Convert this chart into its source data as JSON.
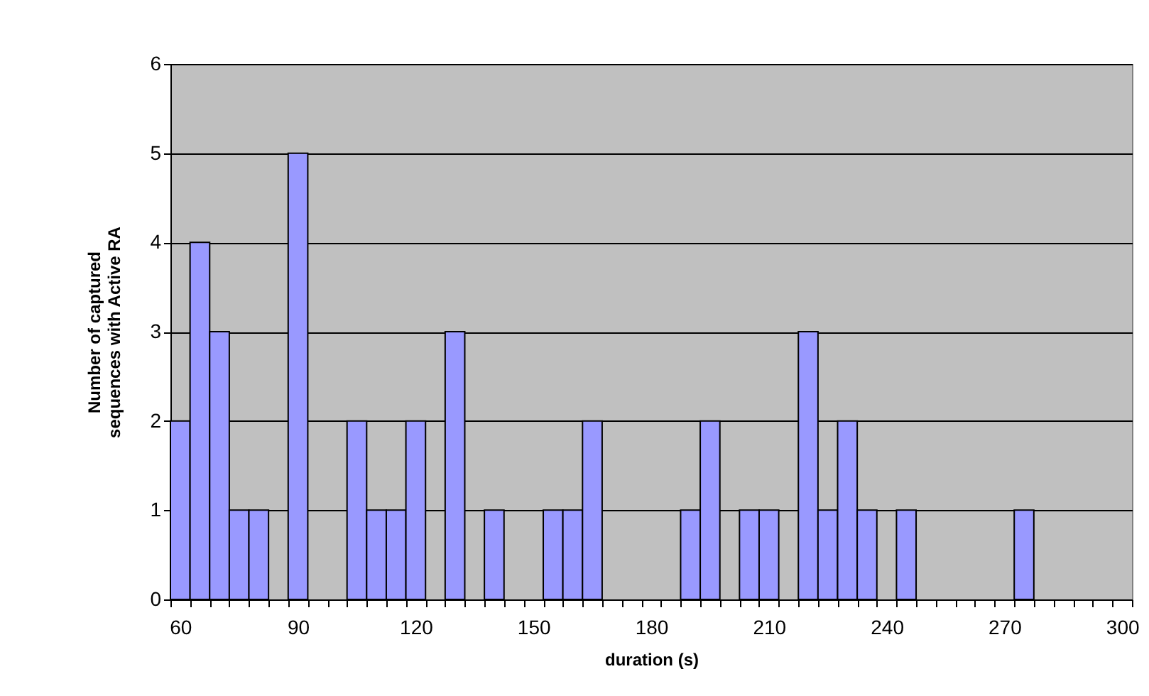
{
  "chart_data": {
    "type": "bar",
    "xlabel": "duration (s)",
    "ylabel": "Number of captured sequences with Active RA",
    "categories": [
      "60",
      null,
      null,
      null,
      null,
      null,
      "90",
      null,
      null,
      null,
      null,
      null,
      "120",
      null,
      null,
      null,
      null,
      null,
      "150",
      null,
      null,
      null,
      null,
      null,
      "180",
      null,
      null,
      null,
      null,
      null,
      "210",
      null,
      null,
      null,
      null,
      null,
      "240",
      null,
      null,
      null,
      null,
      null,
      "270",
      null,
      null,
      null,
      null,
      null,
      "300"
    ],
    "values": [
      2,
      4,
      3,
      1,
      1,
      0,
      5,
      0,
      0,
      2,
      1,
      1,
      2,
      0,
      3,
      0,
      1,
      0,
      0,
      1,
      1,
      2,
      0,
      0,
      0,
      0,
      1,
      2,
      0,
      1,
      1,
      0,
      3,
      1,
      2,
      1,
      0,
      1,
      0,
      0,
      0,
      0,
      0,
      1,
      0,
      0,
      0,
      0,
      0
    ],
    "color": "#9999ff",
    "ylim": [
      0,
      6
    ],
    "yticks": [
      0,
      1,
      2,
      3,
      4,
      5,
      6
    ],
    "grid": "y"
  }
}
